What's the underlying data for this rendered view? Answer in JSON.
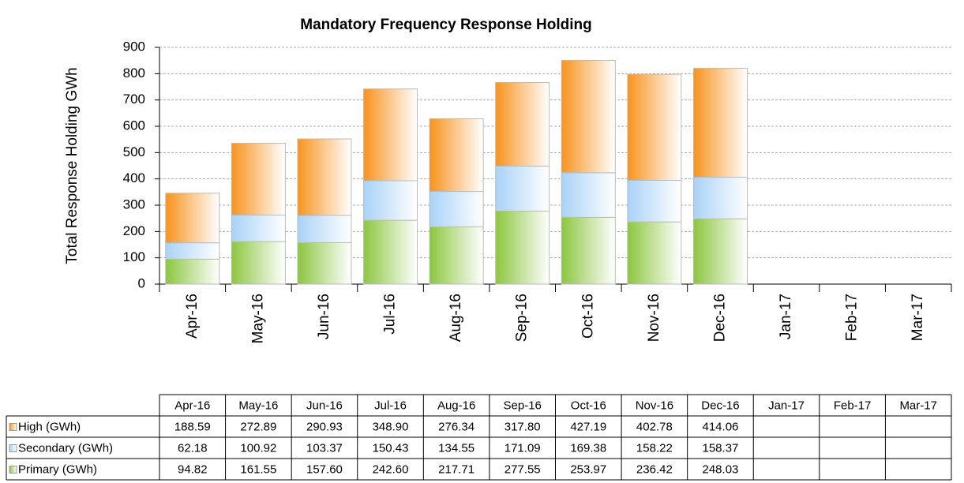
{
  "chart_data": {
    "type": "stacked_bar",
    "title": "Mandatory Frequency Response Holding",
    "y_label": "Total Response Holding  GWh",
    "categories": [
      "Apr-16",
      "May-16",
      "Jun-16",
      "Jul-16",
      "Aug-16",
      "Sep-16",
      "Oct-16",
      "Nov-16",
      "Dec-16",
      "Jan-17",
      "Feb-17",
      "Mar-17"
    ],
    "series": [
      {
        "name": "Primary (GWh)",
        "color": "#8cc63f",
        "values": [
          94.82,
          161.55,
          157.6,
          242.6,
          217.71,
          277.55,
          253.97,
          236.42,
          248.03,
          null,
          null,
          null
        ],
        "value_labels": [
          "94.82",
          "161.55",
          "157.60",
          "242.60",
          "217.71",
          "277.55",
          "253.97",
          "236.42",
          "248.03",
          null,
          null,
          null
        ]
      },
      {
        "name": "Secondary (GWh)",
        "color": "#a9d2f7",
        "values": [
          62.18,
          100.92,
          103.37,
          150.43,
          134.55,
          171.09,
          169.38,
          158.22,
          158.37,
          null,
          null,
          null
        ],
        "value_labels": [
          "62.18",
          "100.92",
          "103.37",
          "150.43",
          "134.55",
          "171.09",
          "169.38",
          "158.22",
          "158.37",
          null,
          null,
          null
        ]
      },
      {
        "name": "High (GWh)",
        "color": "#f7931e",
        "values": [
          188.59,
          272.89,
          290.93,
          348.9,
          276.34,
          317.8,
          427.19,
          402.78,
          414.06,
          null,
          null,
          null
        ],
        "value_labels": [
          "188.59",
          "272.89",
          "290.93",
          "348.90",
          "276.34",
          "317.80",
          "427.19",
          "402.78",
          "414.06",
          null,
          null,
          null
        ]
      }
    ],
    "ylim": [
      0,
      900
    ],
    "yticks": [
      0,
      100,
      200,
      300,
      400,
      500,
      600,
      700,
      800,
      900
    ],
    "grid": true
  }
}
